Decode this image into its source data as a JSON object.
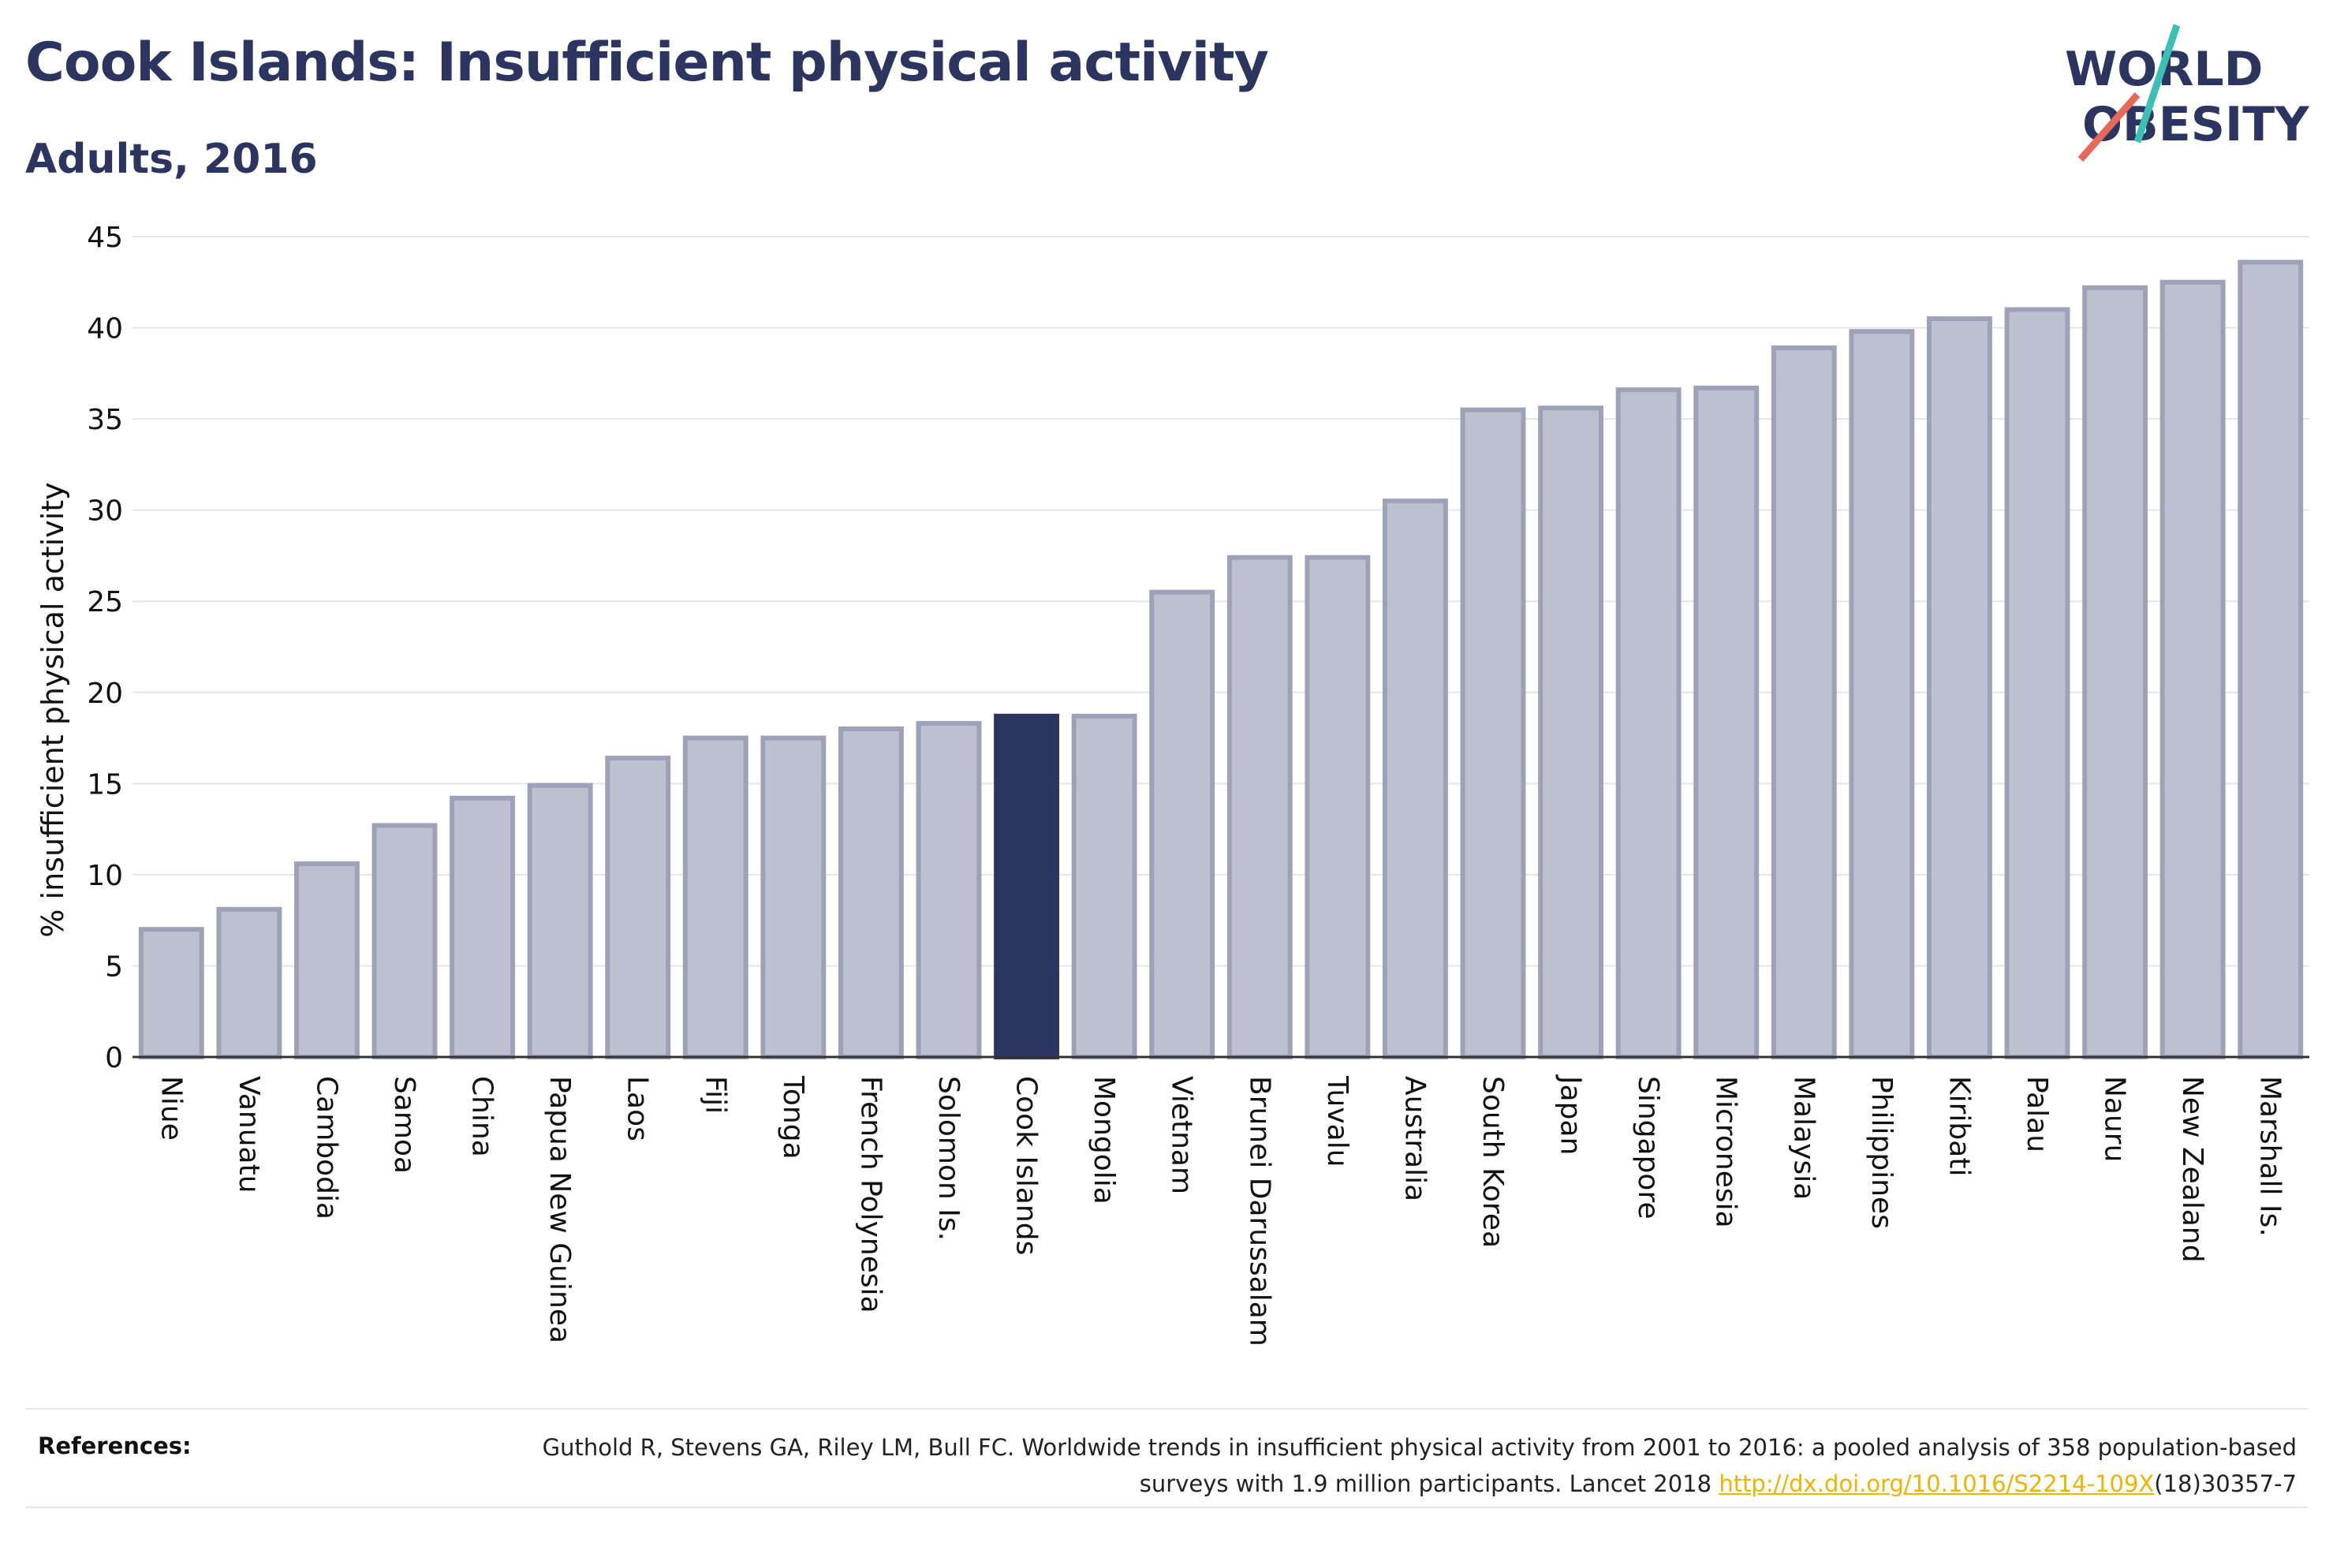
{
  "header": {
    "title": "Cook Islands: Insufficient physical activity",
    "subtitle": "Adults, 2016"
  },
  "logo": {
    "line1": "WORLD",
    "line2": "OBESITY",
    "text_color": "#2b3560",
    "slash_colors": [
      "#3cbfb4",
      "#e8685a"
    ]
  },
  "chart_data": {
    "type": "bar",
    "ylabel": "% insufficient physical activity",
    "xlabel": "",
    "ylim": [
      0,
      45
    ],
    "yticks": [
      0,
      5,
      10,
      15,
      20,
      25,
      30,
      35,
      40,
      45
    ],
    "grid": true,
    "highlight": "Cook Islands",
    "colors": {
      "default": "#bdc0ce",
      "default_border": "#9da2b8",
      "highlight": "#2b3560"
    },
    "categories": [
      "Niue",
      "Vanuatu",
      "Cambodia",
      "Samoa",
      "China",
      "Papua New Guinea",
      "Laos",
      "Fiji",
      "Tonga",
      "French Polynesia",
      "Solomon Is.",
      "Cook Islands",
      "Mongolia",
      "Vietnam",
      "Brunei Darussalam",
      "Tuvalu",
      "Australia",
      "South Korea",
      "Japan",
      "Singapore",
      "Micronesia",
      "Malaysia",
      "Philippines",
      "Kiribati",
      "Palau",
      "Nauru",
      "New Zealand",
      "Marshall Is."
    ],
    "values": [
      7.0,
      8.1,
      10.6,
      12.7,
      14.2,
      14.9,
      16.4,
      17.5,
      17.5,
      18.0,
      18.3,
      18.7,
      18.7,
      25.5,
      27.4,
      27.4,
      30.5,
      35.5,
      35.6,
      36.6,
      36.7,
      38.9,
      39.8,
      40.5,
      41.0,
      42.2,
      42.5,
      43.6
    ]
  },
  "references": {
    "label": "References:",
    "text_before": "Guthold R, Stevens GA, Riley LM, Bull FC. Worldwide trends in insufficient physical activity from 2001 to 2016: a pooled analysis of 358 population-based surveys with 1.9 million participants. Lancet 2018 ",
    "link": "http://dx.doi.org/10.1016/S2214-109X",
    "text_after": "(18)30357-7"
  }
}
